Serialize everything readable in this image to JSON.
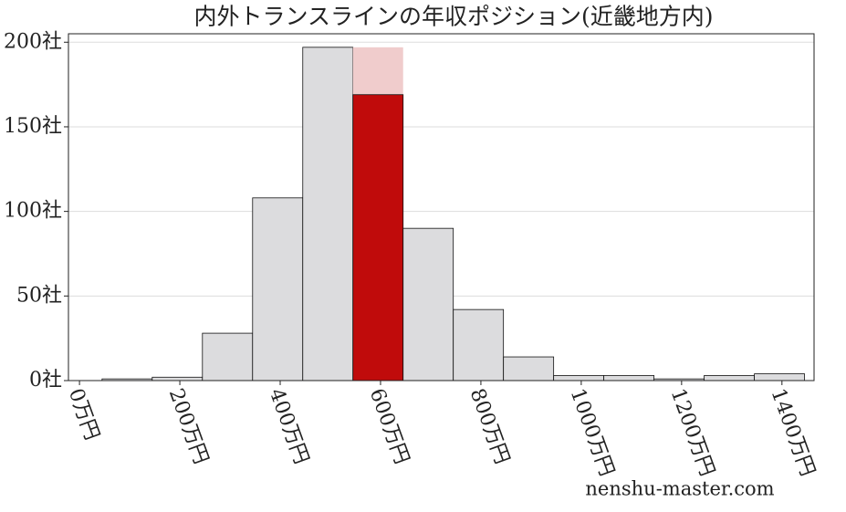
{
  "chart_data": {
    "type": "histogram",
    "title": "内外トランスラインの年収ポジション(近畿地方内)",
    "bins": [
      45,
      145,
      245,
      345,
      445,
      545,
      645,
      745,
      845,
      945,
      1045,
      1145,
      1245,
      1345,
      1445
    ],
    "values": [
      1,
      2,
      28,
      108,
      197,
      169,
      90,
      42,
      14,
      3,
      3,
      1,
      3,
      4
    ],
    "color": "#dcdcde",
    "highlight_color": "#c00b0b",
    "highlight_index": 5,
    "band_value": 197,
    "band_color": "#f0cccc",
    "xlim": [
      -22,
      1464
    ],
    "ylim": [
      0,
      205
    ],
    "xticks": [
      {
        "value": 0,
        "label": "0万円"
      },
      {
        "value": 200,
        "label": "200万円"
      },
      {
        "value": 400,
        "label": "400万円"
      },
      {
        "value": 600,
        "label": "600万円"
      },
      {
        "value": 800,
        "label": "800万円"
      },
      {
        "value": 1000,
        "label": "1000万円"
      },
      {
        "value": 1200,
        "label": "1200万円"
      },
      {
        "value": 1400,
        "label": "1400万円"
      }
    ],
    "yticks": [
      {
        "value": 0,
        "label": "0社"
      },
      {
        "value": 50,
        "label": "50社"
      },
      {
        "value": 100,
        "label": "100社"
      },
      {
        "value": 150,
        "label": "150社"
      },
      {
        "value": 200,
        "label": "200社"
      }
    ],
    "grid": true,
    "watermark": "nenshu-master.com"
  }
}
